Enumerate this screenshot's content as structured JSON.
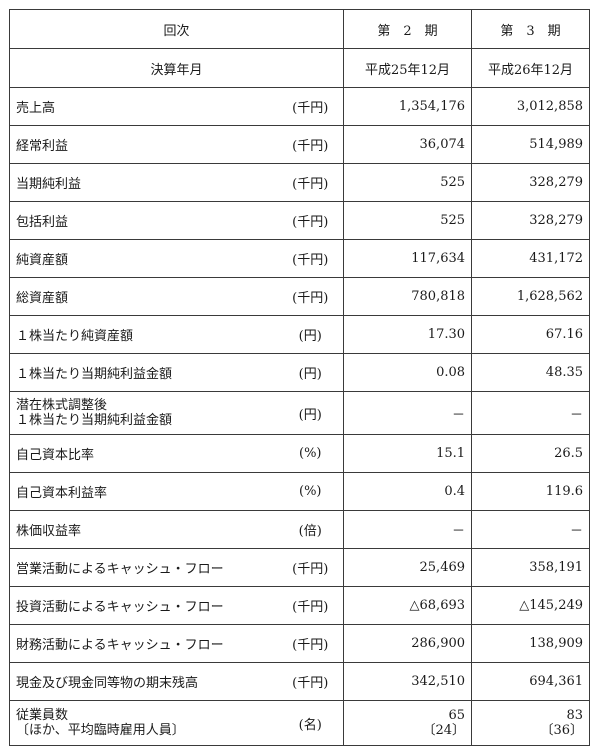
{
  "header": {
    "col_label": "回次",
    "period2": "第　2　期",
    "period3": "第　3　期"
  },
  "fiscal": {
    "label": "決算年月",
    "p2": "平成25年12月",
    "p3": "平成26年12月"
  },
  "rows": [
    {
      "label": "売上高",
      "unit": "(千円)",
      "p2": "1,354,176",
      "p3": "3,012,858"
    },
    {
      "label": "経常利益",
      "unit": "(千円)",
      "p2": "36,074",
      "p3": "514,989"
    },
    {
      "label": "当期純利益",
      "unit": "(千円)",
      "p2": "525",
      "p3": "328,279"
    },
    {
      "label": "包括利益",
      "unit": "(千円)",
      "p2": "525",
      "p3": "328,279"
    },
    {
      "label": "純資産額",
      "unit": "(千円)",
      "p2": "117,634",
      "p3": "431,172"
    },
    {
      "label": "総資産額",
      "unit": "(千円)",
      "p2": "780,818",
      "p3": "1,628,562"
    },
    {
      "label": "１株当たり純資産額",
      "unit": "(円)",
      "p2": "17.30",
      "p3": "67.16"
    },
    {
      "label": "１株当たり当期純利益金額",
      "unit": "(円)",
      "p2": "0.08",
      "p3": "48.35"
    },
    {
      "label": "潜在株式調整後",
      "label2": "１株当たり当期純利益金額",
      "unit": "(円)",
      "p2": "－",
      "p3": "－"
    },
    {
      "label": "自己資本比率",
      "unit": "(%)",
      "p2": "15.1",
      "p3": "26.5"
    },
    {
      "label": "自己資本利益率",
      "unit": "(%)",
      "p2": "0.4",
      "p3": "119.6"
    },
    {
      "label": "株価収益率",
      "unit": "(倍)",
      "p2": "－",
      "p3": "－"
    },
    {
      "label": "営業活動によるキャッシュ・フロー",
      "unit": "(千円)",
      "p2": "25,469",
      "p3": "358,191"
    },
    {
      "label": "投資活動によるキャッシュ・フロー",
      "unit": "(千円)",
      "p2": "△68,693",
      "p3": "△145,249"
    },
    {
      "label": "財務活動によるキャッシュ・フロー",
      "unit": "(千円)",
      "p2": "286,900",
      "p3": "138,909"
    },
    {
      "label": "現金及び現金同等物の期末残高",
      "unit": "(千円)",
      "p2": "342,510",
      "p3": "694,361"
    }
  ],
  "employees": {
    "label": "従業員数",
    "label2": "〔ほか、平均臨時雇用人員〕",
    "unit": "(名)",
    "p2": "65",
    "p2_sub": "〔24〕",
    "p3": "83",
    "p3_sub": "〔36〕"
  }
}
